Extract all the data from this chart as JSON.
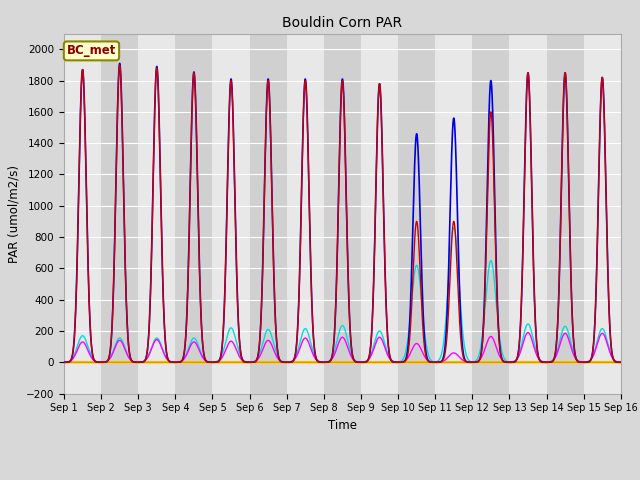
{
  "title": "Bouldin Corn PAR",
  "ylabel": "PAR (umol/m2/s)",
  "xlabel": "Time",
  "annotation": "BC_met",
  "ylim": [
    -200,
    2100
  ],
  "yticks": [
    -200,
    0,
    200,
    400,
    600,
    800,
    1000,
    1200,
    1400,
    1600,
    1800,
    2000
  ],
  "x_tick_labels": [
    "Sep 1",
    "Sep 2",
    "Sep 3",
    "Sep 4",
    "Sep 5",
    "Sep 6",
    "Sep 7",
    "Sep 8",
    "Sep 9",
    "Sep 10",
    "Sep 11",
    "Sep 12",
    "Sep 13",
    "Sep 14",
    "Sep 15",
    "Sep 16"
  ],
  "colors": {
    "PAR_in": "#cc0000",
    "PAR_out": "#ff00ff",
    "totPAR": "#0000dd",
    "difPAR": "#00dddd",
    "zPAR1": "#ff8800",
    "zPAR2": "#dddd00"
  },
  "background_color": "#d8d8d8",
  "plot_bg_color_light": "#e8e8e8",
  "plot_bg_color_dark": "#d0d0d0",
  "n_days": 15,
  "points_per_day": 1000,
  "peak_values": {
    "day1": {
      "totPAR": 1870,
      "PAR_in": 1870,
      "PAR_out": 130,
      "difPAR": 170,
      "zPAR1": 0,
      "zPAR2": 0
    },
    "day2": {
      "totPAR": 1910,
      "PAR_in": 1900,
      "PAR_out": 140,
      "difPAR": 155,
      "zPAR1": 0,
      "zPAR2": 0
    },
    "day3": {
      "totPAR": 1890,
      "PAR_in": 1880,
      "PAR_out": 145,
      "difPAR": 155,
      "zPAR1": 0,
      "zPAR2": 0
    },
    "day4": {
      "totPAR": 1855,
      "PAR_in": 1850,
      "PAR_out": 130,
      "difPAR": 155,
      "zPAR1": 0,
      "zPAR2": 0
    },
    "day5": {
      "totPAR": 1810,
      "PAR_in": 1800,
      "PAR_out": 135,
      "difPAR": 220,
      "zPAR1": 0,
      "zPAR2": 0
    },
    "day6": {
      "totPAR": 1810,
      "PAR_in": 1800,
      "PAR_out": 140,
      "difPAR": 210,
      "zPAR1": 0,
      "zPAR2": 0
    },
    "day7": {
      "totPAR": 1810,
      "PAR_in": 1800,
      "PAR_out": 155,
      "difPAR": 215,
      "zPAR1": 0,
      "zPAR2": 0
    },
    "day8": {
      "totPAR": 1810,
      "PAR_in": 1800,
      "PAR_out": 160,
      "difPAR": 235,
      "zPAR1": 0,
      "zPAR2": 0
    },
    "day9": {
      "totPAR": 1780,
      "PAR_in": 1780,
      "PAR_out": 160,
      "difPAR": 200,
      "zPAR1": 0,
      "zPAR2": 0
    },
    "day10": {
      "totPAR": 1460,
      "PAR_in": 900,
      "PAR_out": 120,
      "difPAR": 620,
      "zPAR1": 0,
      "zPAR2": 0
    },
    "day11": {
      "totPAR": 1560,
      "PAR_in": 900,
      "PAR_out": 60,
      "difPAR": 860,
      "zPAR1": 0,
      "zPAR2": 0
    },
    "day12": {
      "totPAR": 1800,
      "PAR_in": 1600,
      "PAR_out": 165,
      "difPAR": 650,
      "zPAR1": 0,
      "zPAR2": 0
    },
    "day13": {
      "totPAR": 1850,
      "PAR_in": 1850,
      "PAR_out": 190,
      "difPAR": 245,
      "zPAR1": 0,
      "zPAR2": 0
    },
    "day14": {
      "totPAR": 1850,
      "PAR_in": 1850,
      "PAR_out": 185,
      "difPAR": 230,
      "zPAR1": 0,
      "zPAR2": 0
    },
    "day15": {
      "totPAR": 1820,
      "PAR_in": 1820,
      "PAR_out": 185,
      "difPAR": 215,
      "zPAR1": 0,
      "zPAR2": 0
    }
  }
}
